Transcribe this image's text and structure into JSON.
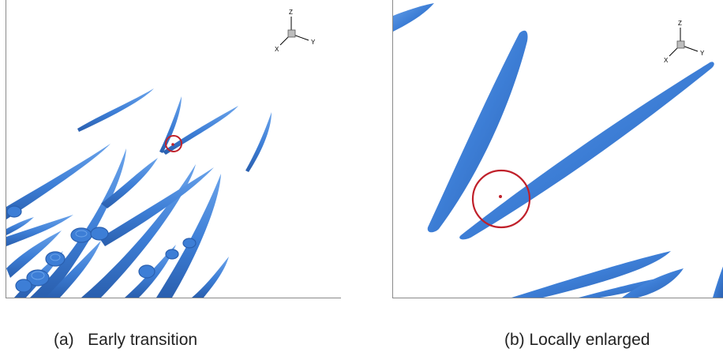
{
  "colors": {
    "vortex": "#3d7ed6",
    "vortex_dark": "#2a5fae",
    "vortex_highlight": "#6aa3ea",
    "marker": "#c0202a",
    "frame": "#8a8a8a"
  },
  "axes_triad": {
    "z_label": "Z",
    "y_label": "Y",
    "x_label": "X"
  },
  "panels": [
    {
      "caption": "(a)   Early transition"
    },
    {
      "caption": "(b) Locally enlarged"
    }
  ]
}
